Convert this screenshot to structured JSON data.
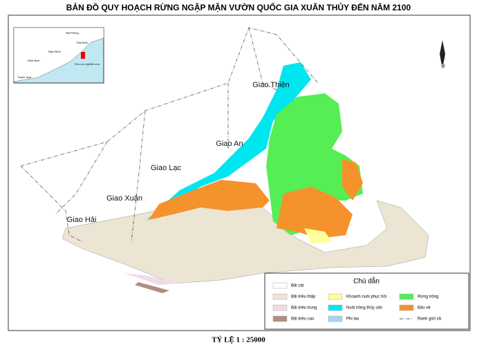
{
  "title": "BẢN ĐỒ QUY HOẠCH RỪNG NGẬP MẶN VƯỜN QUỐC GIA XUÂN THỦY ĐẾN NĂM 2100",
  "scale": "TỶ LỆ 1 : 25000",
  "communes": [
    "Giao Thiện",
    "Giao An",
    "Giao Lạc",
    "Giao Xuân",
    "Giao Hải"
  ],
  "inset": [
    "Hải Phòng",
    "Thái Bình",
    "Nam Định",
    "Ninh Bình",
    "Khu vực nghiên cứu",
    "Thanh Hóa"
  ],
  "legend": {
    "heading": "Chú dẫn",
    "items": [
      {
        "label": "Bãi cát",
        "color": "#ffffff"
      },
      {
        "label": "Bãi triều thấp",
        "color": "#ece5d3"
      },
      {
        "label": "Bãi triều trung",
        "color": "#f1dbe6"
      },
      {
        "label": "Bãi triều cao",
        "color": "#b48c82"
      },
      {
        "label": "Khoanh nuôi phục hồi",
        "color": "#ffff99"
      },
      {
        "label": "Nuôi trồng thủy sản",
        "color": "#00e6f0"
      },
      {
        "label": "Phi lao",
        "color": "#a9d2f2"
      },
      {
        "label": "Rừng trồng",
        "color": "#55ee55"
      },
      {
        "label": "Bảo vệ",
        "color": "#f5922b"
      },
      {
        "label": "Ranh giới xã",
        "color": "#555555"
      }
    ]
  }
}
